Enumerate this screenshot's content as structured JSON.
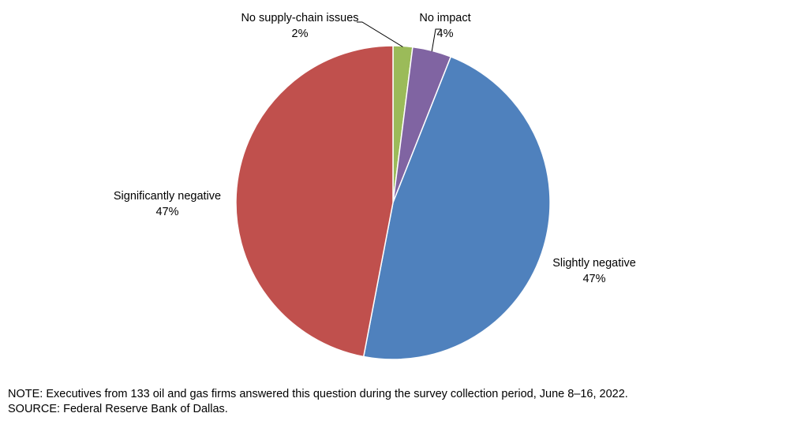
{
  "chart_data": {
    "type": "pie",
    "slices": [
      {
        "label": "No supply-chain issues",
        "value": 2,
        "value_label": "2%",
        "color": "#9BBB59"
      },
      {
        "label": "No impact",
        "value": 4,
        "value_label": "4%",
        "color": "#8064A2"
      },
      {
        "label": "Slightly negative",
        "value": 47,
        "value_label": "47%",
        "color": "#4F81BD"
      },
      {
        "label": "Significantly negative",
        "value": 47,
        "value_label": "47%",
        "color": "#C0504D"
      }
    ]
  },
  "footnotes": {
    "note": "NOTE:  Executives  from  133  oil  and  gas  firms  answered  this  question  during  the  survey  collection  period,  June  8–16,  2022.",
    "source": "SOURCE:  Federal  Reserve  Bank  of  Dallas."
  }
}
